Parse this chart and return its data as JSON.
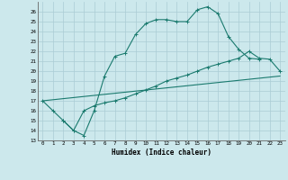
{
  "xlabel": "Humidex (Indice chaleur)",
  "background_color": "#cce8ec",
  "grid_color": "#aaccd4",
  "line_color": "#1a7a6e",
  "xlim": [
    -0.5,
    23.5
  ],
  "ylim": [
    13,
    27
  ],
  "xticks": [
    0,
    1,
    2,
    3,
    4,
    5,
    6,
    7,
    8,
    9,
    10,
    11,
    12,
    13,
    14,
    15,
    16,
    17,
    18,
    19,
    20,
    21,
    22,
    23
  ],
  "yticks": [
    13,
    14,
    15,
    16,
    17,
    18,
    19,
    20,
    21,
    22,
    23,
    24,
    25,
    26
  ],
  "line1_x": [
    0,
    1,
    2,
    3,
    4,
    5,
    6,
    7,
    8,
    9,
    10,
    11,
    12,
    13,
    14,
    15,
    16,
    17,
    18,
    19,
    20,
    21
  ],
  "line1_y": [
    17,
    16,
    15,
    14,
    13.5,
    16.0,
    19.5,
    21.5,
    21.8,
    23.7,
    24.8,
    25.2,
    25.2,
    25.0,
    25.0,
    26.2,
    26.5,
    25.8,
    23.5,
    22.2,
    21.3,
    21.2
  ],
  "line2_x": [
    2,
    3,
    4,
    5,
    6,
    7,
    8,
    9,
    10,
    11,
    12,
    13,
    14,
    15,
    16,
    17,
    18,
    19,
    20,
    21,
    22,
    23
  ],
  "line2_y": [
    15.0,
    14.0,
    16.0,
    16.5,
    16.8,
    17.0,
    17.3,
    17.7,
    18.1,
    18.5,
    19.0,
    19.3,
    19.6,
    20.0,
    20.4,
    20.7,
    21.0,
    21.3,
    22.0,
    21.3,
    21.2,
    20.0
  ],
  "line3_x": [
    0,
    23
  ],
  "line3_y": [
    17,
    19.5
  ]
}
